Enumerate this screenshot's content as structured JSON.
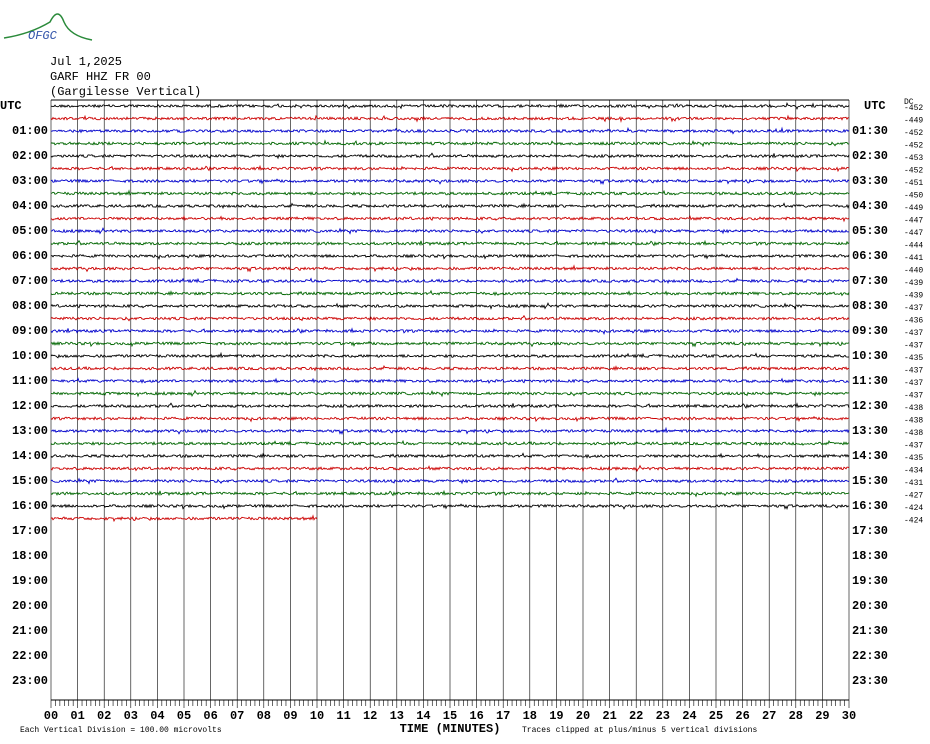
{
  "logo": "OFGC",
  "header": {
    "date": "Jul 1,2025",
    "station": "GARF HHZ FR 00",
    "location": "(Gargilesse Vertical)"
  },
  "left_axis": {
    "title": "UTC",
    "labels": [
      "01:00",
      "02:00",
      "03:00",
      "04:00",
      "05:00",
      "06:00",
      "07:00",
      "08:00",
      "09:00",
      "10:00",
      "11:00",
      "12:00",
      "13:00",
      "14:00",
      "15:00",
      "16:00",
      "17:00",
      "18:00",
      "19:00",
      "20:00",
      "21:00",
      "22:00",
      "23:00"
    ]
  },
  "right_axis": {
    "title": "UTC",
    "labels": [
      "01:30",
      "02:30",
      "03:30",
      "04:30",
      "05:30",
      "06:30",
      "07:30",
      "08:30",
      "09:30",
      "10:30",
      "11:30",
      "12:30",
      "13:30",
      "14:30",
      "15:30",
      "16:30",
      "17:30",
      "18:30",
      "19:30",
      "20:30",
      "21:30",
      "22:30",
      "23:30"
    ]
  },
  "dc": {
    "title": "DC",
    "values": [
      -452,
      -449,
      -452,
      -452,
      -453,
      -452,
      -451,
      -450,
      -449,
      -447,
      -447,
      -444,
      -441,
      -440,
      -439,
      -439,
      -437,
      -436,
      -437,
      -437,
      -435,
      -437,
      -437,
      -437,
      -438,
      -438,
      -438,
      -437,
      -435,
      -434,
      -431,
      -427,
      -424,
      -424
    ]
  },
  "traces": {
    "colors": [
      "#000000",
      "#cc0000",
      "#0000cc",
      "#006600"
    ],
    "last_end_minute": 10
  },
  "x_axis": {
    "title": "TIME (MINUTES)",
    "ticks": [
      "00",
      "01",
      "02",
      "03",
      "04",
      "05",
      "06",
      "07",
      "08",
      "09",
      "10",
      "11",
      "12",
      "13",
      "14",
      "15",
      "16",
      "17",
      "18",
      "19",
      "20",
      "21",
      "22",
      "23",
      "24",
      "25",
      "26",
      "27",
      "28",
      "29",
      "30"
    ]
  },
  "footer": {
    "scale": "Each Vertical Division =  100.00 microvolts",
    "clip": "Traces clipped at plus/minus 5 vertical divisions"
  }
}
